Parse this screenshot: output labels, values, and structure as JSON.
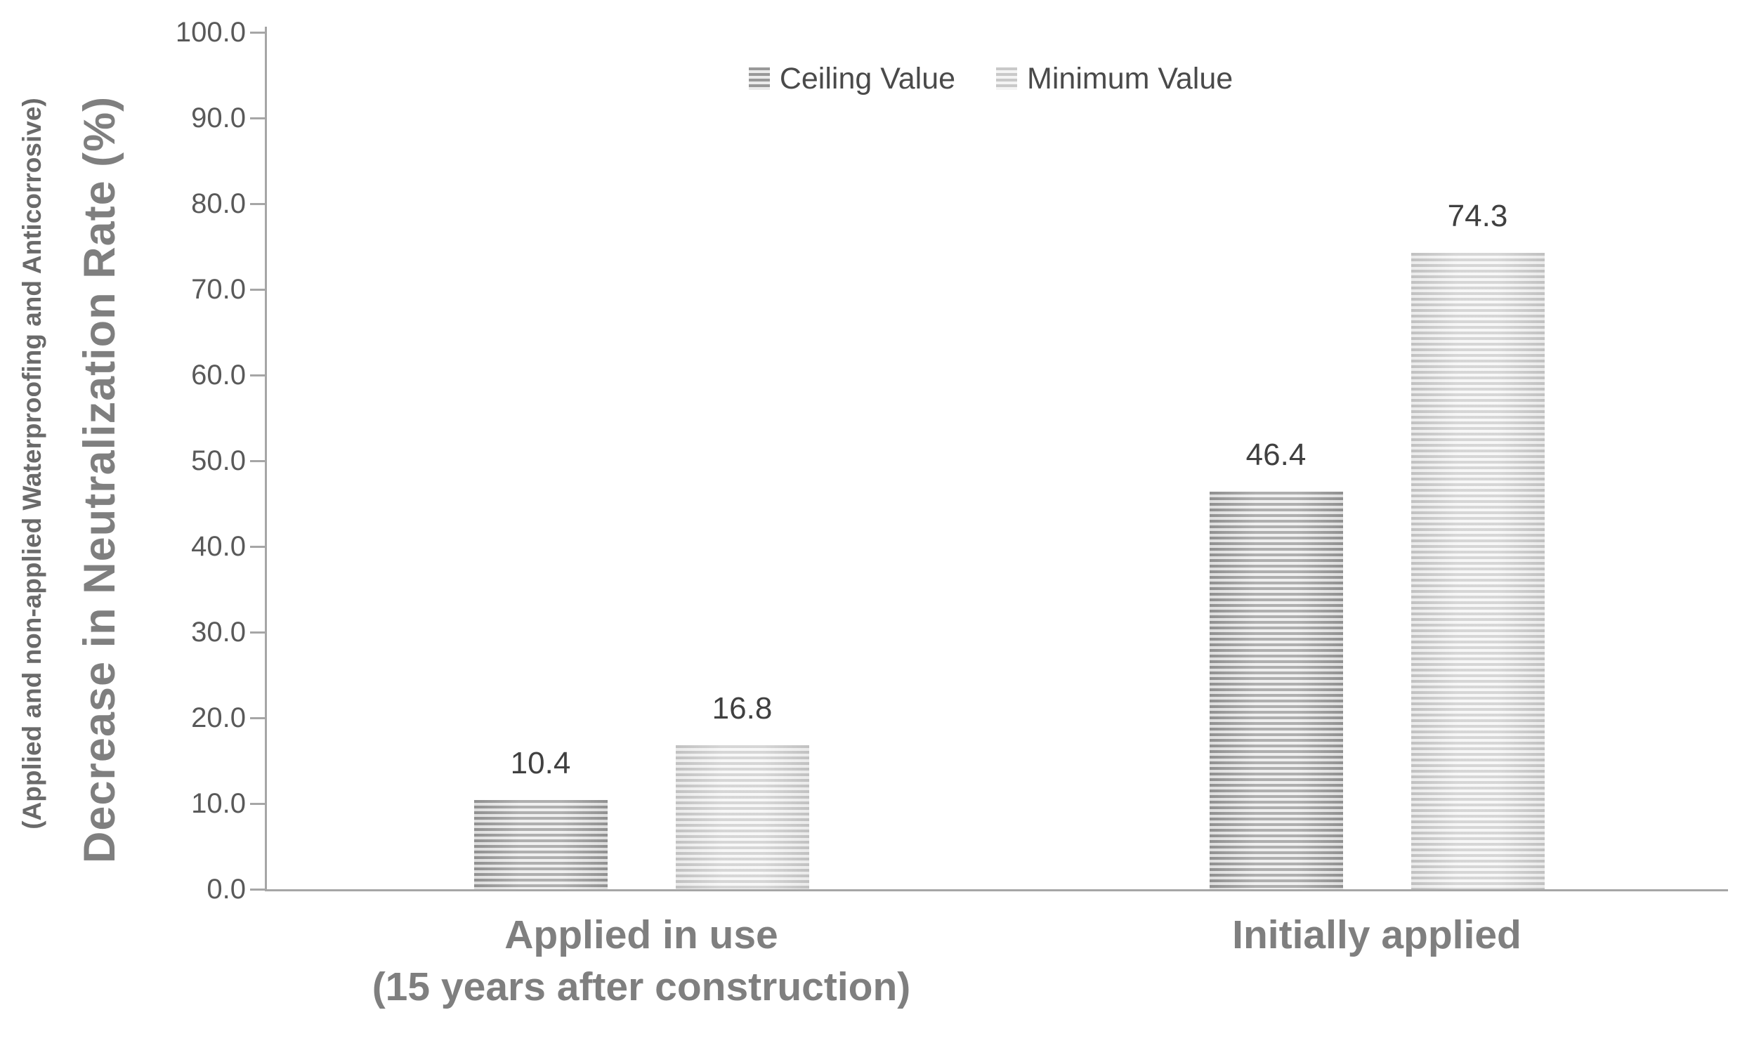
{
  "chart_data": {
    "type": "bar",
    "title": "",
    "ylabel": "Decrease in Neutralization Rate (%)",
    "ylabel_sub": "(Applied and non-applied Waterproofing and Anticorrosive)",
    "categories": [
      {
        "lines": [
          "Applied in use",
          "(15 years after construction)"
        ]
      },
      {
        "lines": [
          "Initially applied"
        ]
      }
    ],
    "series": [
      {
        "name": "Ceiling Value",
        "values": [
          10.4,
          46.4
        ],
        "pattern": "dark-horizontal-stripes"
      },
      {
        "name": "Minimum Value",
        "values": [
          16.8,
          74.3
        ],
        "pattern": "light-horizontal-stripes"
      }
    ],
    "value_labels": [
      "10.4",
      "16.8",
      "46.4",
      "74.3"
    ],
    "ylim": [
      0,
      100
    ],
    "ytick_step": 10,
    "ytick_labels": [
      "0.0",
      "10.0",
      "20.0",
      "30.0",
      "40.0",
      "50.0",
      "60.0",
      "70.0",
      "80.0",
      "90.0",
      "100.0"
    ],
    "grid": false,
    "legend_position": "top-center"
  },
  "colors": {
    "ceiling_stripe": "#999999",
    "ceiling_background": "#ebebeb",
    "minimum_stripe": "#c9c9c9",
    "minimum_background": "#f4f4f4",
    "axis_line": "#a6a6a6",
    "tick_label": "#595959",
    "value_label": "#404040",
    "category_label": "#7f7f7f",
    "axis_title": "#7f7f7f",
    "legend_text": "#4a4a4a"
  }
}
